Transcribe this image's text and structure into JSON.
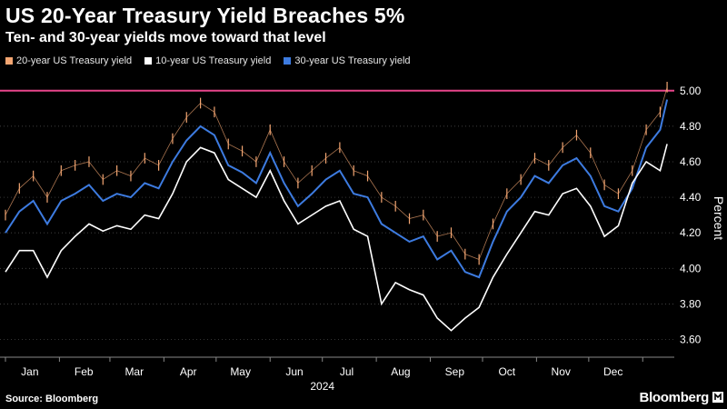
{
  "header": {
    "title": "US 20-Year Treasury Yield Breaches 5%",
    "subtitle": "Ten- and 30-year yields move toward that level"
  },
  "footer": {
    "source": "Source: Bloomberg",
    "brand": "Bloomberg"
  },
  "colors": {
    "background": "#000000",
    "y20": "#f4a672",
    "y10": "#ffffff",
    "y30": "#3d7be0",
    "threshold": "#e8458b",
    "grid": "#555555"
  },
  "chart_data": {
    "type": "line",
    "ylabel": "Percent",
    "xlabel": "2024",
    "ylim": [
      3.5,
      5.05
    ],
    "yticks": [
      "3.60",
      "3.80",
      "4.00",
      "4.20",
      "4.40",
      "4.60",
      "4.80",
      "5.00"
    ],
    "month_labels": [
      "Jan",
      "Feb",
      "Mar",
      "Apr",
      "May",
      "Jun",
      "Jul",
      "Aug",
      "Sep",
      "Oct",
      "Nov",
      "Dec"
    ],
    "grid": "horizontal dotted",
    "legend_position": "top-left",
    "threshold": 5.0,
    "x": [
      "2024-01-01",
      "2024-01-09",
      "2024-01-17",
      "2024-01-25",
      "2024-02-02",
      "2024-02-10",
      "2024-02-18",
      "2024-02-26",
      "2024-03-05",
      "2024-03-13",
      "2024-03-21",
      "2024-03-29",
      "2024-04-06",
      "2024-04-14",
      "2024-04-22",
      "2024-04-30",
      "2024-05-08",
      "2024-05-16",
      "2024-05-24",
      "2024-06-01",
      "2024-06-09",
      "2024-06-17",
      "2024-06-25",
      "2024-07-03",
      "2024-07-11",
      "2024-07-19",
      "2024-07-27",
      "2024-08-04",
      "2024-08-12",
      "2024-08-20",
      "2024-08-28",
      "2024-09-05",
      "2024-09-13",
      "2024-09-21",
      "2024-09-29",
      "2024-10-07",
      "2024-10-15",
      "2024-10-23",
      "2024-10-31",
      "2024-11-08",
      "2024-11-16",
      "2024-11-24",
      "2024-12-02",
      "2024-12-10",
      "2024-12-18",
      "2024-12-26",
      "2025-01-03",
      "2025-01-11",
      "2025-01-15"
    ],
    "series": [
      {
        "name": "20-year US Treasury yield",
        "values": [
          4.3,
          4.45,
          4.52,
          4.4,
          4.55,
          4.58,
          4.6,
          4.5,
          4.55,
          4.52,
          4.62,
          4.58,
          4.73,
          4.85,
          4.93,
          4.88,
          4.7,
          4.66,
          4.6,
          4.78,
          4.6,
          4.48,
          4.55,
          4.62,
          4.68,
          4.55,
          4.52,
          4.4,
          4.35,
          4.28,
          4.3,
          4.18,
          4.2,
          4.08,
          4.05,
          4.25,
          4.42,
          4.5,
          4.62,
          4.58,
          4.68,
          4.75,
          4.65,
          4.47,
          4.42,
          4.55,
          4.78,
          4.88,
          5.02
        ]
      },
      {
        "name": "10-year US Treasury yield",
        "values": [
          3.98,
          4.1,
          4.1,
          3.95,
          4.1,
          4.18,
          4.25,
          4.21,
          4.24,
          4.22,
          4.3,
          4.28,
          4.42,
          4.6,
          4.68,
          4.65,
          4.5,
          4.45,
          4.4,
          4.55,
          4.38,
          4.25,
          4.3,
          4.35,
          4.38,
          4.22,
          4.18,
          3.8,
          3.92,
          3.88,
          3.85,
          3.72,
          3.65,
          3.72,
          3.78,
          3.95,
          4.08,
          4.2,
          4.32,
          4.3,
          4.42,
          4.45,
          4.35,
          4.18,
          4.24,
          4.48,
          4.6,
          4.55,
          4.7
        ]
      },
      {
        "name": "30-year US Treasury yield",
        "values": [
          4.2,
          4.32,
          4.38,
          4.25,
          4.38,
          4.42,
          4.47,
          4.38,
          4.42,
          4.4,
          4.48,
          4.45,
          4.6,
          4.72,
          4.8,
          4.75,
          4.58,
          4.54,
          4.48,
          4.65,
          4.48,
          4.35,
          4.42,
          4.5,
          4.55,
          4.42,
          4.4,
          4.25,
          4.2,
          4.15,
          4.18,
          4.05,
          4.1,
          3.98,
          3.95,
          4.15,
          4.32,
          4.4,
          4.52,
          4.48,
          4.58,
          4.62,
          4.52,
          4.35,
          4.32,
          4.45,
          4.68,
          4.78,
          4.95
        ]
      }
    ]
  }
}
